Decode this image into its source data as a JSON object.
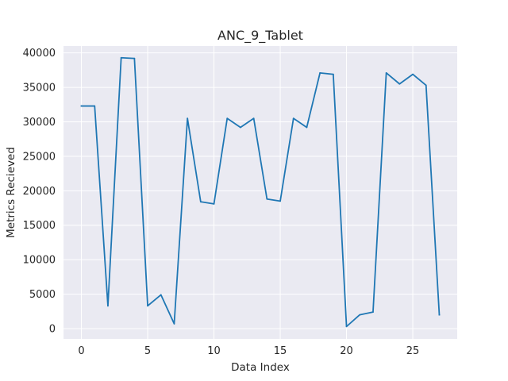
{
  "chart_data": {
    "type": "line",
    "title": "ANC_9_Tablet",
    "xlabel": "Data Index",
    "ylabel": "Metrics Recieved",
    "xlim": [
      -1.35,
      28.35
    ],
    "ylim": [
      -1500,
      41000
    ],
    "xticks": [
      0,
      5,
      10,
      15,
      20,
      25
    ],
    "yticks": [
      0,
      5000,
      10000,
      15000,
      20000,
      25000,
      30000,
      35000,
      40000
    ],
    "grid": true,
    "series": [
      {
        "color": "#1f77b4",
        "x": [
          0,
          1,
          2,
          3,
          4,
          5,
          6,
          7,
          8,
          9,
          10,
          11,
          12,
          13,
          14,
          15,
          16,
          17,
          18,
          19,
          20,
          21,
          22,
          23,
          24,
          25,
          26,
          27
        ],
        "values": [
          32300,
          32300,
          3300,
          39300,
          39200,
          3300,
          4900,
          700,
          30500,
          18400,
          18100,
          30500,
          29200,
          30500,
          18800,
          18500,
          30500,
          29200,
          37100,
          36900,
          300,
          2000,
          2400,
          37100,
          35500,
          36900,
          35300,
          2000
        ]
      }
    ]
  }
}
